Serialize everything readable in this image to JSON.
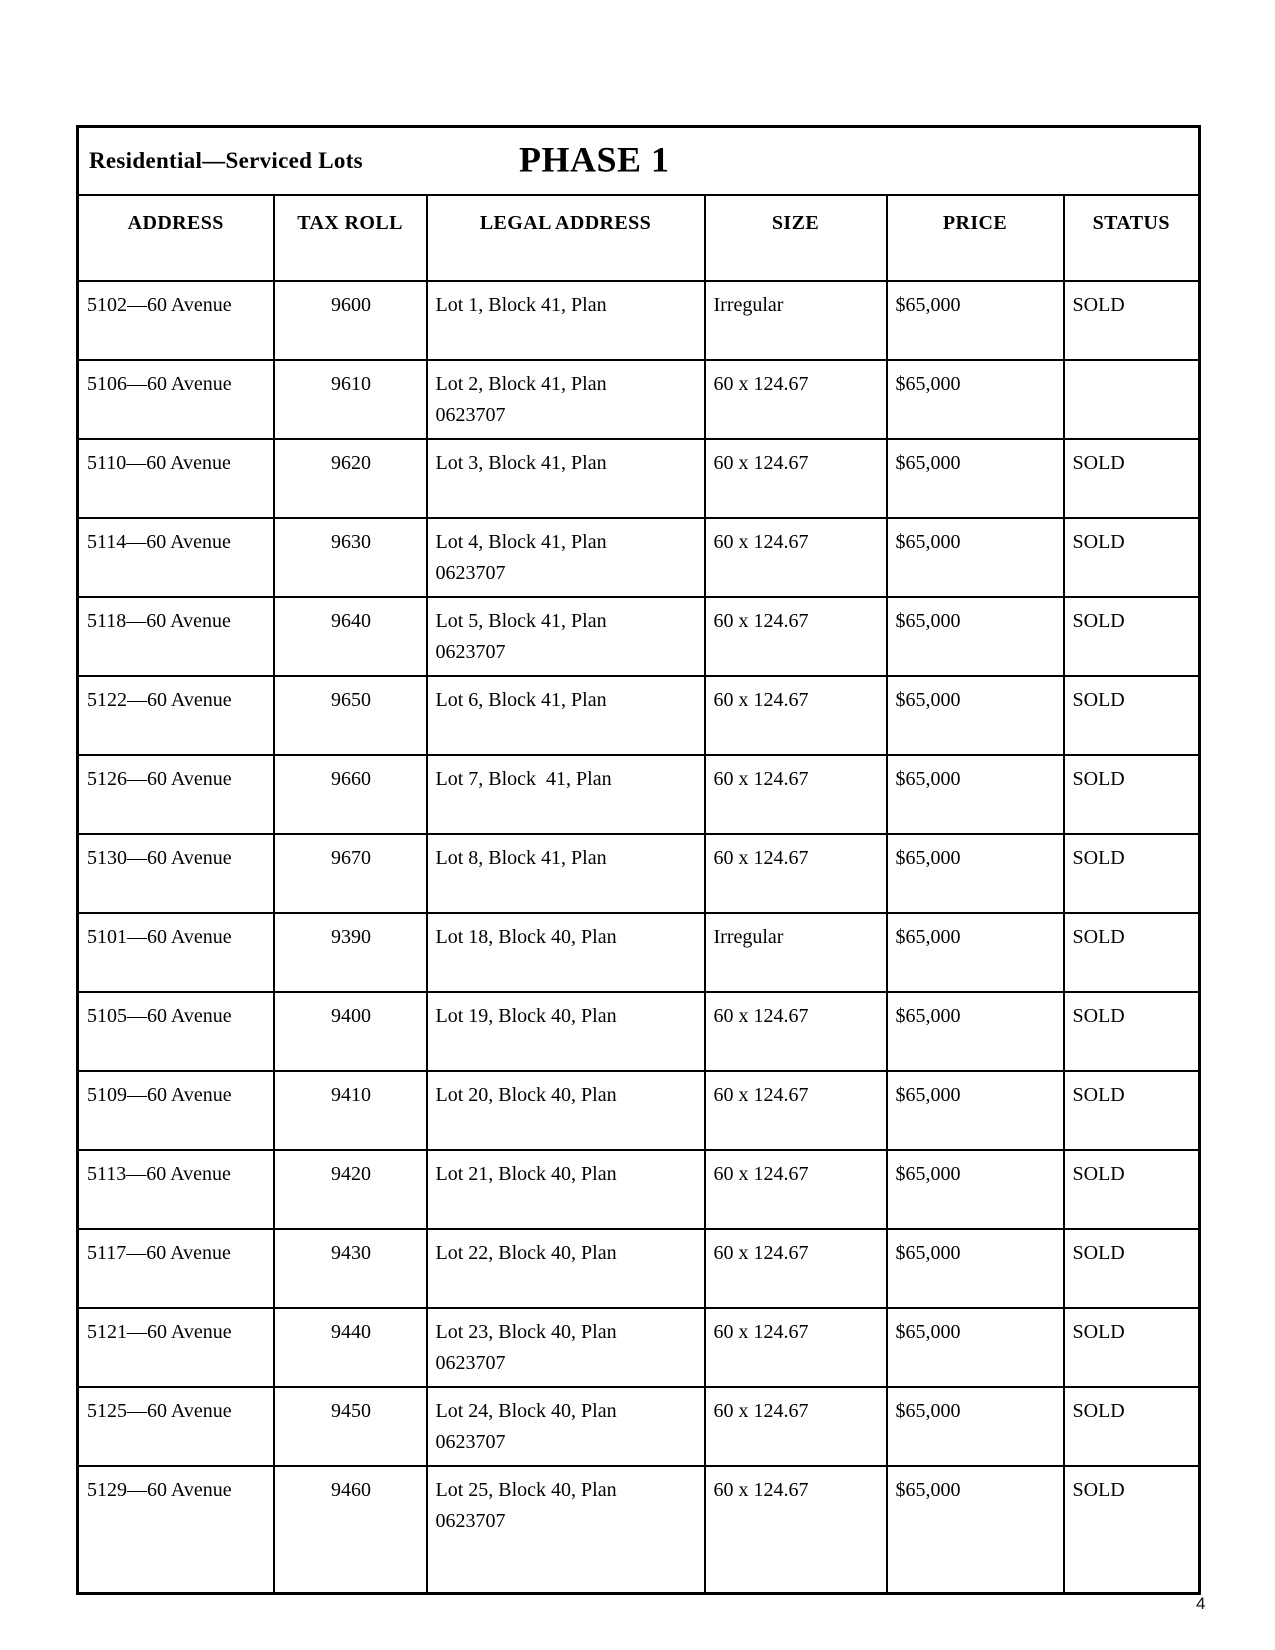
{
  "page": {
    "number": "4"
  },
  "table": {
    "title": "Residential—Serviced Lots",
    "phase": "PHASE 1",
    "headers": [
      "ADDRESS",
      "TAX ROLL",
      "LEGAL ADDRESS",
      "SIZE",
      "PRICE",
      "STATUS"
    ],
    "rows": [
      {
        "address": "5102—60 Avenue",
        "tax_roll": "9600",
        "legal": "Lot 1, Block 41, Plan",
        "legal2": "",
        "size": "Irregular",
        "price": "$65,000",
        "status": "SOLD"
      },
      {
        "address": "5106—60 Avenue",
        "tax_roll": "9610",
        "legal": "Lot 2, Block 41, Plan",
        "legal2": "0623707",
        "size": "60 x 124.67",
        "price": "$65,000",
        "status": ""
      },
      {
        "address": "5110—60 Avenue",
        "tax_roll": "9620",
        "legal": "Lot 3, Block 41, Plan",
        "legal2": "",
        "size": "60 x 124.67",
        "price": "$65,000",
        "status": "SOLD"
      },
      {
        "address": "5114—60 Avenue",
        "tax_roll": "9630",
        "legal": "Lot 4, Block 41, Plan",
        "legal2": "0623707",
        "size": "60 x 124.67",
        "price": "$65,000",
        "status": "SOLD"
      },
      {
        "address": "5118—60 Avenue",
        "tax_roll": "9640",
        "legal": "Lot 5, Block 41, Plan",
        "legal2": "0623707",
        "size": "60 x 124.67",
        "price": "$65,000",
        "status": "SOLD"
      },
      {
        "address": "5122—60 Avenue",
        "tax_roll": "9650",
        "legal": "Lot 6, Block 41, Plan",
        "legal2": "",
        "size": "60 x 124.67",
        "price": "$65,000",
        "status": "SOLD"
      },
      {
        "address": "5126—60 Avenue",
        "tax_roll": "9660",
        "legal": "Lot 7, Block  41, Plan",
        "legal2": "",
        "size": "60 x 124.67",
        "price": "$65,000",
        "status": "SOLD"
      },
      {
        "address": "5130—60 Avenue",
        "tax_roll": "9670",
        "legal": "Lot 8, Block 41, Plan",
        "legal2": "",
        "size": "60 x 124.67",
        "price": "$65,000",
        "status": "SOLD"
      },
      {
        "address": "5101—60 Avenue",
        "tax_roll": "9390",
        "legal": "Lot 18, Block 40, Plan",
        "legal2": "",
        "size": "Irregular",
        "price": "$65,000",
        "status": "SOLD"
      },
      {
        "address": "5105—60 Avenue",
        "tax_roll": "9400",
        "legal": "Lot 19, Block 40, Plan",
        "legal2": "",
        "size": "60 x 124.67",
        "price": "$65,000",
        "status": "SOLD"
      },
      {
        "address": "5109—60 Avenue",
        "tax_roll": "9410",
        "legal": "Lot 20, Block 40, Plan",
        "legal2": "",
        "size": "60 x 124.67",
        "price": "$65,000",
        "status": "SOLD"
      },
      {
        "address": "5113—60 Avenue",
        "tax_roll": "9420",
        "legal": "Lot 21, Block 40, Plan",
        "legal2": "",
        "size": "60 x 124.67",
        "price": "$65,000",
        "status": "SOLD"
      },
      {
        "address": "5117—60 Avenue",
        "tax_roll": "9430",
        "legal": "Lot 22, Block 40, Plan",
        "legal2": "",
        "size": "60 x 124.67",
        "price": "$65,000",
        "status": "SOLD"
      },
      {
        "address": "5121—60 Avenue",
        "tax_roll": "9440",
        "legal": "Lot 23, Block 40, Plan",
        "legal2": "0623707",
        "size": "60 x 124.67",
        "price": "$65,000",
        "status": "SOLD"
      },
      {
        "address": "5125—60 Avenue",
        "tax_roll": "9450",
        "legal": "Lot 24, Block 40, Plan",
        "legal2": "0623707",
        "size": "60 x 124.67",
        "price": "$65,000",
        "status": "SOLD"
      },
      {
        "address": "5129—60 Avenue",
        "tax_roll": "9460",
        "legal": "Lot 25, Block 40, Plan",
        "legal2": "0623707",
        "size": "60 x 124.67",
        "price": "$65,000",
        "status": "SOLD"
      }
    ]
  }
}
